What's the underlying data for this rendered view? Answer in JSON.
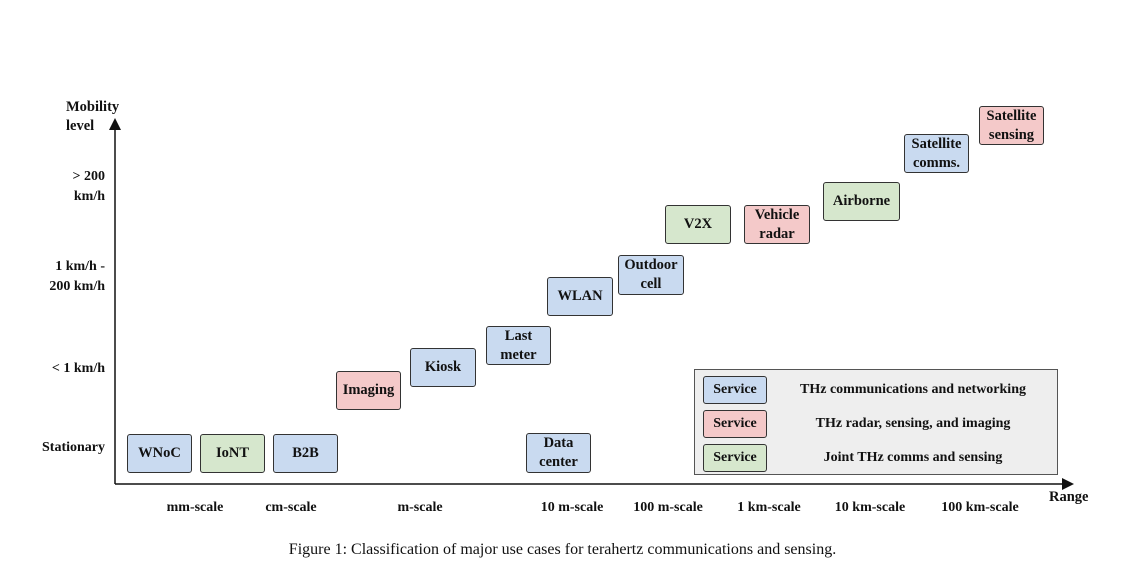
{
  "axes": {
    "y_title": "Mobility\nlevel",
    "x_title": "Range",
    "y_levels": [
      "> 200\nkm/h",
      "1 km/h -\n200 km/h",
      "< 1 km/h",
      "Stationary"
    ],
    "x_scales": [
      "mm-scale",
      "cm-scale",
      "m-scale",
      "10 m-scale",
      "100 m-scale",
      "1 km-scale",
      "10 km-scale",
      "100 km-scale"
    ]
  },
  "use_cases": [
    {
      "label": "WNoC",
      "category": "comms"
    },
    {
      "label": "IoNT",
      "category": "joint"
    },
    {
      "label": "B2B",
      "category": "comms"
    },
    {
      "label": "Imaging",
      "category": "sensing"
    },
    {
      "label": "Kiosk",
      "category": "comms"
    },
    {
      "label": "Last\nmeter",
      "category": "comms"
    },
    {
      "label": "Data\ncenter",
      "category": "comms"
    },
    {
      "label": "WLAN",
      "category": "comms"
    },
    {
      "label": "Outdoor\ncell",
      "category": "comms"
    },
    {
      "label": "V2X",
      "category": "joint"
    },
    {
      "label": "Vehicle\nradar",
      "category": "sensing"
    },
    {
      "label": "Airborne",
      "category": "joint"
    },
    {
      "label": "Satellite\ncomms.",
      "category": "comms"
    },
    {
      "label": "Satellite\nsensing",
      "category": "sensing"
    }
  ],
  "legend": [
    {
      "chip": "Service",
      "text": "THz communications and networking",
      "color": "#c9daf0"
    },
    {
      "chip": "Service",
      "text": "THz radar, sensing, and imaging",
      "color": "#f4c9c9"
    },
    {
      "chip": "Service",
      "text": "Joint THz comms and sensing",
      "color": "#d6e7cd"
    }
  ],
  "caption": "Figure 1: Classification of major use cases for terahertz communications and sensing.",
  "colors": {
    "comms": "#c9daf0",
    "sensing": "#f4c9c9",
    "joint": "#d6e7cd"
  }
}
